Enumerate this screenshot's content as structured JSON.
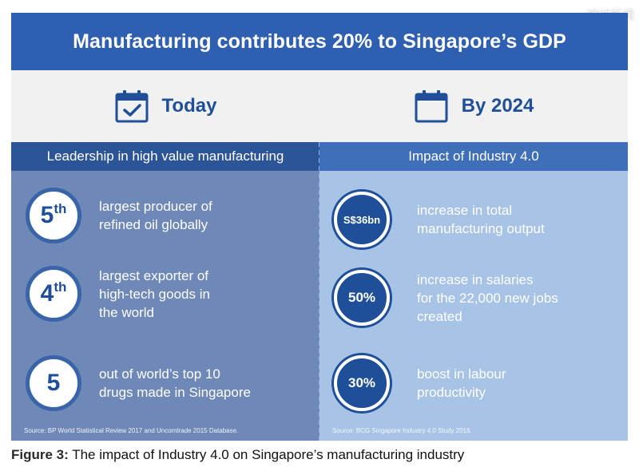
{
  "watermark": "狮城新闻",
  "banner": {
    "title": "Manufacturing contributes 20% to Singapore’s GDP"
  },
  "today": {
    "label": "Today",
    "icon": "calendar-check-icon",
    "subheading": "Leadership in high value manufacturing",
    "items": [
      {
        "rank": "5",
        "suffix": "th",
        "text": "largest producer of\nrefined oil globally"
      },
      {
        "rank": "4",
        "suffix": "th",
        "text": "largest exporter of\nhigh-tech goods in\nthe world"
      },
      {
        "rank": "5",
        "suffix": "",
        "text": "out of world’s top 10\ndrugs made in Singapore"
      }
    ],
    "source": "Source: BP World Statistical Review 2017 and Uncomtrade 2015 Database."
  },
  "by2024": {
    "label": "By 2024",
    "icon": "calendar-icon",
    "subheading": "Impact of Industry 4.0",
    "items": [
      {
        "value": "S$36bn",
        "text": "increase in total\nmanufacturing output"
      },
      {
        "value": "50%",
        "text": "increase in salaries\nfor the 22,000 new jobs\ncreated"
      },
      {
        "value": "30%",
        "text": "boost in labour\nproductivity"
      }
    ],
    "source": "Source: BCG Singapore Industry 4.0 Study 2016."
  },
  "caption": {
    "prefix": "Figure 3:",
    "text": " The impact of Industry 4.0 on Singapore’s manufacturing industry"
  },
  "colors": {
    "banner": "#2f5fb0",
    "heading_text": "#1f4f98",
    "left_column": "#6e88b8",
    "right_column": "#a7c3e6"
  }
}
